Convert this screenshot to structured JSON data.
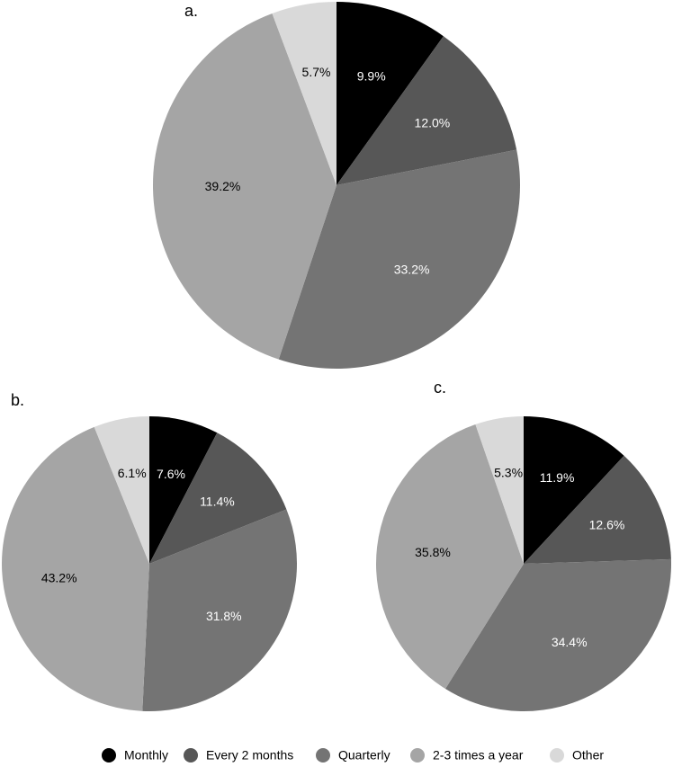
{
  "chart_data": [
    {
      "type": "pie",
      "panel_label": "a.",
      "categories": [
        "Monthly",
        "Every 2 months",
        "Quarterly",
        "2-3 times a year",
        "Other"
      ],
      "values": [
        9.9,
        12.0,
        33.2,
        39.2,
        5.7
      ],
      "labels": [
        "9.9%",
        "12.0%",
        "33.2%",
        "39.2%",
        "5.7%"
      ]
    },
    {
      "type": "pie",
      "panel_label": "b.",
      "categories": [
        "Monthly",
        "Every 2 months",
        "Quarterly",
        "2-3 times a year",
        "Other"
      ],
      "values": [
        7.6,
        11.4,
        31.8,
        43.2,
        6.1
      ],
      "labels": [
        "7.6%",
        "11.4%",
        "31.8%",
        "43.2%",
        "6.1%"
      ]
    },
    {
      "type": "pie",
      "panel_label": "c.",
      "categories": [
        "Monthly",
        "Every 2 months",
        "Quarterly",
        "2-3 times a year",
        "Other"
      ],
      "values": [
        11.9,
        12.6,
        34.4,
        35.8,
        5.3
      ],
      "labels": [
        "11.9%",
        "12.6%",
        "34.4%",
        "35.8%",
        "5.3%"
      ]
    }
  ],
  "legend": {
    "placement": "bottom",
    "items": [
      {
        "label": "Monthly",
        "color": "#000000"
      },
      {
        "label": "Every 2 months",
        "color": "#575757"
      },
      {
        "label": "Quarterly",
        "color": "#747474"
      },
      {
        "label": "2-3 times a year",
        "color": "#a5a5a5"
      },
      {
        "label": "Other",
        "color": "#d9d9d9"
      }
    ]
  },
  "slice_colors": [
    "#000000",
    "#575757",
    "#747474",
    "#a5a5a5",
    "#d9d9d9"
  ],
  "label_colors": [
    "#ffffff",
    "#ffffff",
    "#ffffff",
    "#000000",
    "#000000"
  ]
}
